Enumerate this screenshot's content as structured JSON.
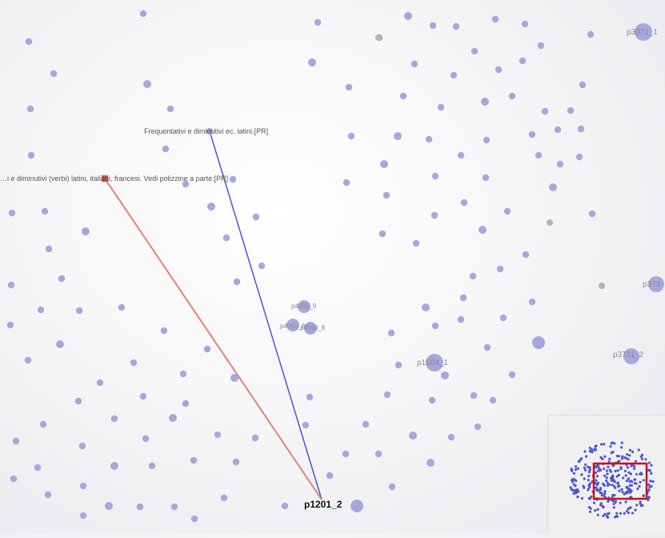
{
  "graph": {
    "focus_node": "p1201_2",
    "edges": [
      {
        "label": "Frequentativi e diminutivi ec. latini.[PR]",
        "color": "#4a55d6"
      },
      {
        "label": "…i e diminutivi (verbi) latini, italiani, francesi. Vedi polizzine a parte.[PR]",
        "color": "#e8736d"
      }
    ],
    "node_labels": {
      "p3071_1": "p3071_1",
      "p373": "p373",
      "p3711_2": "p3711_2",
      "p1504_1": "p1504_1",
      "p4050_8a": "p4050_8",
      "p4050_8b": "p4050_8",
      "p4050_8c": "p4050_8"
    },
    "node_color": "#a6a8dc",
    "grey_node_color": "#b4b4b4"
  },
  "minimap": {
    "viewport_color": "#cc1111",
    "node_color": "#4a55d6"
  }
}
